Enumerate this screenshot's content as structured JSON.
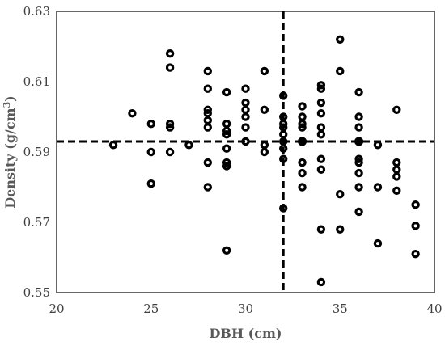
{
  "chart_data": {
    "type": "scatter",
    "title": "",
    "xlabel": "DBH (cm)",
    "ylabel_main": "Density (g/cm",
    "ylabel_sup": "3",
    "ylabel_end": ")",
    "xlim": [
      20,
      40
    ],
    "ylim": [
      0.55,
      0.63
    ],
    "xticks": [
      20,
      25,
      30,
      35,
      40
    ],
    "yticks": [
      0.55,
      0.57,
      0.59,
      0.61,
      0.63
    ],
    "xtick_labels": [
      "20",
      "25",
      "30",
      "35",
      "40"
    ],
    "ytick_labels": [
      "0.55",
      "0.57",
      "0.59",
      "0.61",
      "0.63"
    ],
    "grid": false,
    "points": [
      [
        23,
        0.592
      ],
      [
        24,
        0.601
      ],
      [
        25,
        0.598
      ],
      [
        25,
        0.59
      ],
      [
        25,
        0.581
      ],
      [
        26,
        0.618
      ],
      [
        26,
        0.614
      ],
      [
        26,
        0.598
      ],
      [
        26,
        0.597
      ],
      [
        26,
        0.59
      ],
      [
        27,
        0.592
      ],
      [
        28,
        0.613
      ],
      [
        28,
        0.608
      ],
      [
        28,
        0.602
      ],
      [
        28,
        0.601
      ],
      [
        28,
        0.599
      ],
      [
        28,
        0.597
      ],
      [
        28,
        0.587
      ],
      [
        28,
        0.58
      ],
      [
        29,
        0.607
      ],
      [
        29,
        0.598
      ],
      [
        29,
        0.596
      ],
      [
        29,
        0.595
      ],
      [
        29,
        0.591
      ],
      [
        29,
        0.587
      ],
      [
        29,
        0.586
      ],
      [
        29,
        0.562
      ],
      [
        30,
        0.608
      ],
      [
        30,
        0.604
      ],
      [
        30,
        0.602
      ],
      [
        30,
        0.6
      ],
      [
        30,
        0.597
      ],
      [
        30,
        0.593
      ],
      [
        31,
        0.613
      ],
      [
        31,
        0.602
      ],
      [
        31,
        0.592
      ],
      [
        31,
        0.59
      ],
      [
        32,
        0.606
      ],
      [
        32,
        0.6
      ],
      [
        32,
        0.598
      ],
      [
        32,
        0.597
      ],
      [
        32,
        0.595
      ],
      [
        32,
        0.593
      ],
      [
        32,
        0.591
      ],
      [
        32,
        0.588
      ],
      [
        32,
        0.574
      ],
      [
        33,
        0.603
      ],
      [
        33,
        0.6
      ],
      [
        33,
        0.598
      ],
      [
        33,
        0.597
      ],
      [
        33,
        0.587
      ],
      [
        33,
        0.584
      ],
      [
        33,
        0.58
      ],
      [
        34,
        0.609
      ],
      [
        34,
        0.608
      ],
      [
        34,
        0.604
      ],
      [
        34,
        0.601
      ],
      [
        34,
        0.597
      ],
      [
        34,
        0.595
      ],
      [
        34,
        0.588
      ],
      [
        34,
        0.585
      ],
      [
        34,
        0.568
      ],
      [
        34,
        0.553
      ],
      [
        35,
        0.622
      ],
      [
        35,
        0.613
      ],
      [
        35,
        0.578
      ],
      [
        35,
        0.568
      ],
      [
        36,
        0.607
      ],
      [
        36,
        0.6
      ],
      [
        36,
        0.597
      ],
      [
        36,
        0.593
      ],
      [
        36,
        0.588
      ],
      [
        36,
        0.587
      ],
      [
        36,
        0.584
      ],
      [
        36,
        0.58
      ],
      [
        36,
        0.573
      ],
      [
        37,
        0.592
      ],
      [
        37,
        0.58
      ],
      [
        37,
        0.564
      ],
      [
        38,
        0.602
      ],
      [
        38,
        0.587
      ],
      [
        38,
        0.585
      ],
      [
        38,
        0.583
      ],
      [
        38,
        0.579
      ],
      [
        39,
        0.575
      ],
      [
        39,
        0.569
      ],
      [
        39,
        0.561
      ]
    ],
    "mean_points": [
      [
        33,
        0.593
      ],
      [
        36,
        0.593
      ]
    ],
    "reference_lines": {
      "horizontal_y": 0.593,
      "vertical_x": 32
    }
  }
}
